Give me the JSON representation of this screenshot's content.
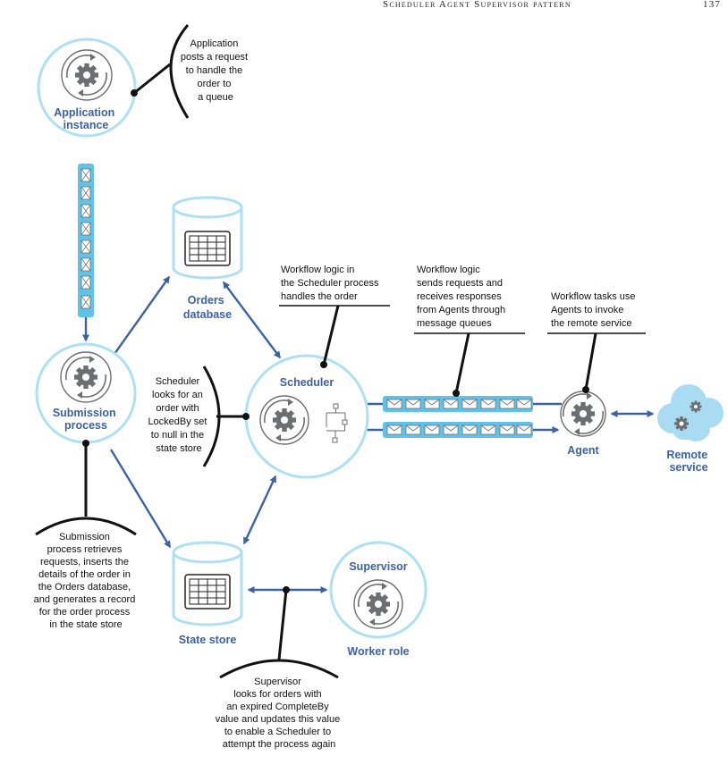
{
  "header": {
    "title": "Scheduler Agent Supervisor pattern",
    "page_number": "137"
  },
  "nodes": {
    "application": [
      "Application",
      "instance"
    ],
    "submission": [
      "Submission",
      "process"
    ],
    "scheduler": [
      "Scheduler"
    ],
    "agent": [
      "Agent"
    ],
    "remote": [
      "Remote",
      "service"
    ],
    "supervisor": [
      "Supervisor"
    ],
    "worker_role": [
      "Worker role"
    ],
    "orders_db": [
      "Orders",
      "database"
    ],
    "state_store": [
      "State store"
    ]
  },
  "notes": {
    "app_posts": [
      "Application",
      "posts a request",
      "to handle the",
      "order to",
      "a queue"
    ],
    "scheduler_looks": [
      "Scheduler",
      "looks for an",
      "order with",
      "LockedBy set",
      "to null in the",
      "state store"
    ],
    "workflow_scheduler": [
      "Workflow logic in",
      "the Scheduler process",
      "handles the order"
    ],
    "workflow_messages": [
      "Workflow logic",
      "sends requests and",
      "receives responses",
      "from Agents through",
      "message queues"
    ],
    "workflow_tasks": [
      "Workflow tasks use",
      "Agents to invoke",
      "the remote service"
    ],
    "submission_retrieves": [
      "Submission",
      "process retrieves",
      "requests, inserts the",
      "details of the order in",
      "the Orders database,",
      "and generates a record",
      "for the order process",
      "in the state store"
    ],
    "supervisor_looks": [
      "Supervisor",
      "looks for orders with",
      "an expired CompleteBy",
      "value and updates this value",
      "to enable a Scheduler to",
      "attempt the process again"
    ]
  },
  "colors": {
    "accent": "#3b62a3",
    "circle_stroke": "#aee0f3",
    "queue_fill": "#5fc2e8",
    "gear": "#6d6e70",
    "cloud": "#a9dcf2",
    "text": "#111111"
  }
}
